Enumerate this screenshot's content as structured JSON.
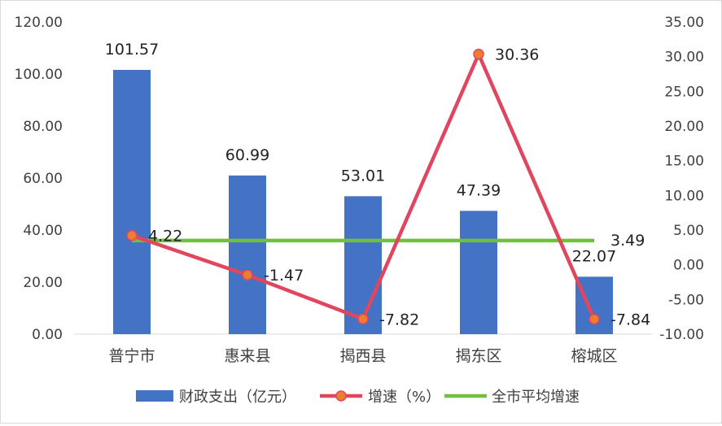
{
  "chart_data": {
    "type": "bar",
    "categories": [
      "普宁市",
      "惠来县",
      "揭西县",
      "揭东区",
      "榕城区"
    ],
    "series": [
      {
        "name": "财政支出（亿元）",
        "type": "bar",
        "axis": "left",
        "color": "#4472C4",
        "values": [
          101.57,
          60.99,
          53.01,
          47.39,
          22.07
        ],
        "labels": [
          "101.57",
          "60.99",
          "53.01",
          "47.39",
          "22.07"
        ]
      },
      {
        "name": "增速（%）",
        "type": "line",
        "axis": "right",
        "color": "#E0475F",
        "marker_fill": "#ED7D31",
        "values": [
          4.22,
          -1.47,
          -7.82,
          30.36,
          -7.84
        ],
        "labels": [
          "4.22",
          "-1.47",
          "-7.82",
          "30.36",
          "-7.84"
        ]
      },
      {
        "name": "全市平均增速",
        "type": "line",
        "axis": "right",
        "color": "#70C03D",
        "values": [
          3.49,
          3.49,
          3.49,
          3.49,
          3.49
        ],
        "labels": [
          "",
          "",
          "",
          "",
          "3.49"
        ]
      }
    ],
    "left_axis": {
      "min": 0,
      "max": 120,
      "step": 20,
      "ticks": [
        "0.00",
        "20.00",
        "40.00",
        "60.00",
        "80.00",
        "100.00",
        "120.00"
      ]
    },
    "right_axis": {
      "min": -10,
      "max": 35,
      "step": 5,
      "ticks": [
        "-10.00",
        "-5.00",
        "0.00",
        "5.00",
        "10.00",
        "15.00",
        "20.00",
        "25.00",
        "30.00",
        "35.00"
      ]
    },
    "grid": false,
    "legend_position": "bottom"
  }
}
